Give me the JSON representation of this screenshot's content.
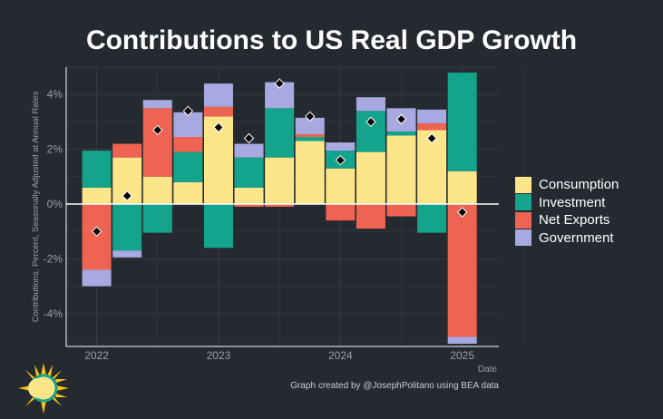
{
  "chart_data": {
    "type": "bar",
    "stacked": true,
    "title": "Contributions to US Real GDP Growth",
    "xlabel": "Date",
    "ylabel": "Contributions, Percent, Seasonally Adjusted at Annual Rates",
    "ylim": [
      -5.2,
      5.0
    ],
    "yticks": [
      -4,
      -2,
      0,
      2,
      4
    ],
    "ytick_labels": [
      "-4%",
      "-2%",
      "0%",
      "2%",
      "4%"
    ],
    "xtick_labels": [
      "2022",
      "2023",
      "2024",
      "2025"
    ],
    "xtick_positions": [
      2022,
      2023,
      2024,
      2025
    ],
    "xlim": [
      2021.75,
      2025.3
    ],
    "grid": true,
    "legend_position": "right",
    "categories": [
      "2022 Q1",
      "2022 Q2",
      "2022 Q3",
      "2022 Q4",
      "2023 Q1",
      "2023 Q2",
      "2023 Q3",
      "2023 Q4",
      "2024 Q1",
      "2024 Q2",
      "2024 Q3",
      "2024 Q4",
      "2025 Q1"
    ],
    "x": [
      2022.0,
      2022.25,
      2022.5,
      2022.75,
      2023.0,
      2023.25,
      2023.5,
      2023.75,
      2024.0,
      2024.25,
      2024.5,
      2024.75,
      2025.0
    ],
    "series": [
      {
        "name": "Consumption",
        "color": "#fde68a",
        "values": [
          0.6,
          1.7,
          1.0,
          0.8,
          3.2,
          0.6,
          1.7,
          2.3,
          1.3,
          1.9,
          2.5,
          2.7,
          1.2
        ]
      },
      {
        "name": "Investment",
        "color": "#14a38b",
        "values": [
          1.35,
          -1.7,
          -1.05,
          1.1,
          -1.6,
          1.1,
          1.8,
          0.15,
          0.65,
          1.5,
          0.15,
          -1.05,
          3.6
        ]
      },
      {
        "name": "Net Exports",
        "color": "#ee6352",
        "values": [
          -2.4,
          0.5,
          2.5,
          0.55,
          0.35,
          -0.1,
          -0.1,
          0.1,
          -0.6,
          -0.9,
          -0.45,
          0.25,
          -4.85
        ]
      },
      {
        "name": "Government",
        "color": "#a8a9e0",
        "values": [
          -0.6,
          -0.25,
          0.3,
          0.9,
          0.85,
          0.5,
          0.95,
          0.6,
          0.3,
          0.5,
          0.85,
          0.5,
          -0.25
        ]
      }
    ],
    "total": {
      "name": "Total",
      "marker": "diamond",
      "values": [
        -1.0,
        0.3,
        2.7,
        3.4,
        2.8,
        2.4,
        4.4,
        3.2,
        1.6,
        3.0,
        3.1,
        2.4,
        -0.3
      ]
    }
  },
  "credit": "Graph created by @JosephPolitano using BEA data",
  "colors": {
    "background": "#252a31",
    "axis_text": "#9aa0a8",
    "grid": "#3a4049",
    "zero_line": "#ffffff"
  }
}
